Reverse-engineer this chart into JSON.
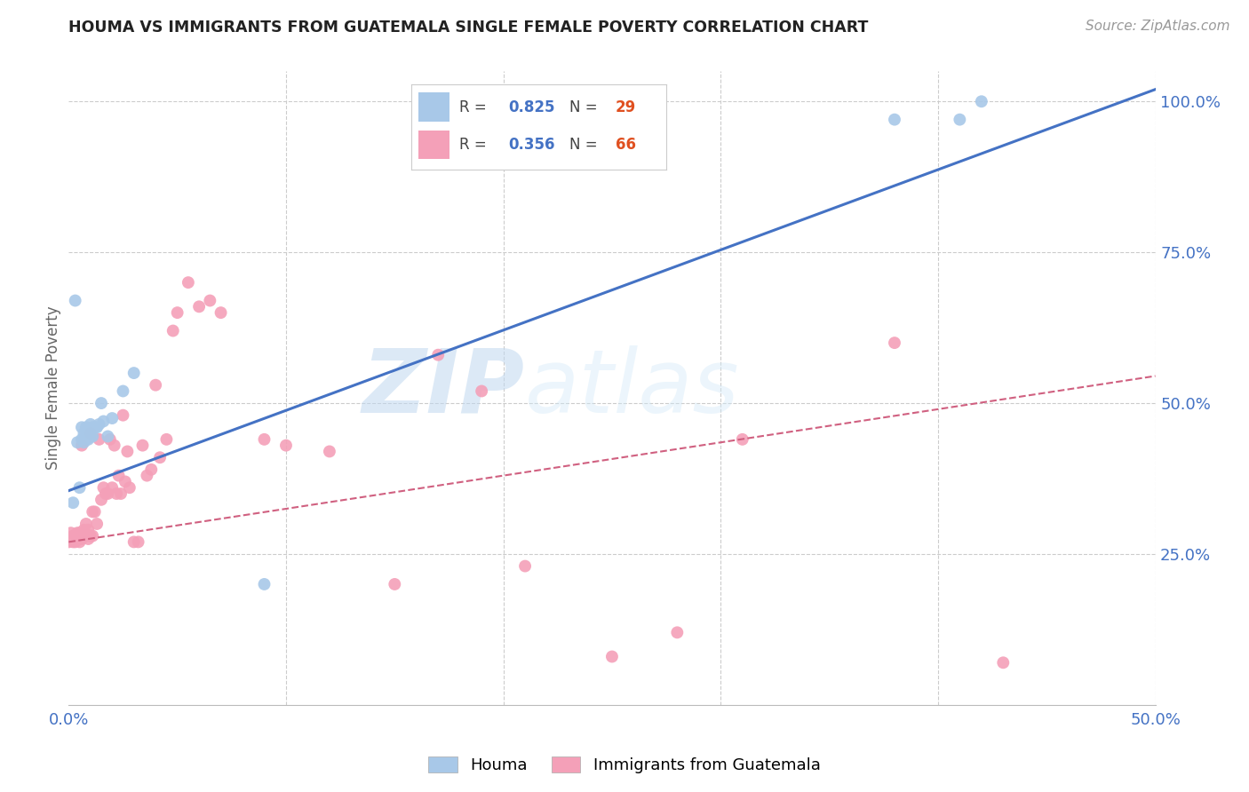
{
  "title": "HOUMA VS IMMIGRANTS FROM GUATEMALA SINGLE FEMALE POVERTY CORRELATION CHART",
  "source": "Source: ZipAtlas.com",
  "ylabel": "Single Female Poverty",
  "houma_R": 0.825,
  "houma_N": 29,
  "guatemala_R": 0.356,
  "guatemala_N": 66,
  "houma_color": "#a8c8e8",
  "houma_line_color": "#4472c4",
  "guatemala_color": "#f4a0b8",
  "guatemala_line_color": "#d06080",
  "watermark_zip": "ZIP",
  "watermark_atlas": "atlas",
  "houma_points_x": [
    0.002,
    0.003,
    0.004,
    0.005,
    0.006,
    0.006,
    0.007,
    0.007,
    0.008,
    0.008,
    0.009,
    0.009,
    0.01,
    0.01,
    0.011,
    0.011,
    0.012,
    0.013,
    0.014,
    0.015,
    0.016,
    0.018,
    0.02,
    0.025,
    0.03,
    0.09,
    0.38,
    0.41,
    0.42
  ],
  "houma_points_y": [
    0.335,
    0.67,
    0.435,
    0.36,
    0.44,
    0.46,
    0.435,
    0.45,
    0.44,
    0.46,
    0.44,
    0.455,
    0.445,
    0.465,
    0.445,
    0.46,
    0.46,
    0.46,
    0.465,
    0.5,
    0.47,
    0.445,
    0.475,
    0.52,
    0.55,
    0.2,
    0.97,
    0.97,
    1.0
  ],
  "guatemala_points_x": [
    0.0,
    0.001,
    0.001,
    0.002,
    0.002,
    0.003,
    0.003,
    0.004,
    0.004,
    0.005,
    0.005,
    0.006,
    0.006,
    0.007,
    0.007,
    0.008,
    0.008,
    0.009,
    0.009,
    0.01,
    0.01,
    0.011,
    0.011,
    0.012,
    0.013,
    0.014,
    0.015,
    0.016,
    0.017,
    0.018,
    0.019,
    0.02,
    0.021,
    0.022,
    0.023,
    0.024,
    0.025,
    0.026,
    0.027,
    0.028,
    0.03,
    0.032,
    0.034,
    0.036,
    0.038,
    0.04,
    0.042,
    0.045,
    0.048,
    0.05,
    0.055,
    0.06,
    0.065,
    0.07,
    0.09,
    0.1,
    0.12,
    0.15,
    0.17,
    0.19,
    0.21,
    0.25,
    0.28,
    0.31,
    0.38,
    0.43
  ],
  "guatemala_points_y": [
    0.27,
    0.275,
    0.285,
    0.27,
    0.28,
    0.27,
    0.28,
    0.275,
    0.285,
    0.27,
    0.285,
    0.275,
    0.43,
    0.28,
    0.29,
    0.28,
    0.3,
    0.275,
    0.29,
    0.28,
    0.45,
    0.32,
    0.28,
    0.32,
    0.3,
    0.44,
    0.34,
    0.36,
    0.35,
    0.35,
    0.44,
    0.36,
    0.43,
    0.35,
    0.38,
    0.35,
    0.48,
    0.37,
    0.42,
    0.36,
    0.27,
    0.27,
    0.43,
    0.38,
    0.39,
    0.53,
    0.41,
    0.44,
    0.62,
    0.65,
    0.7,
    0.66,
    0.67,
    0.65,
    0.44,
    0.43,
    0.42,
    0.2,
    0.58,
    0.52,
    0.23,
    0.08,
    0.12,
    0.44,
    0.6,
    0.07
  ],
  "xlim": [
    0.0,
    0.5
  ],
  "ylim": [
    0.0,
    1.05
  ],
  "houma_line_x0": 0.0,
  "houma_line_y0": 0.355,
  "houma_line_x1": 0.5,
  "houma_line_y1": 1.02,
  "guatemala_line_x0": 0.0,
  "guatemala_line_y0": 0.27,
  "guatemala_line_x1": 0.5,
  "guatemala_line_y1": 0.545
}
